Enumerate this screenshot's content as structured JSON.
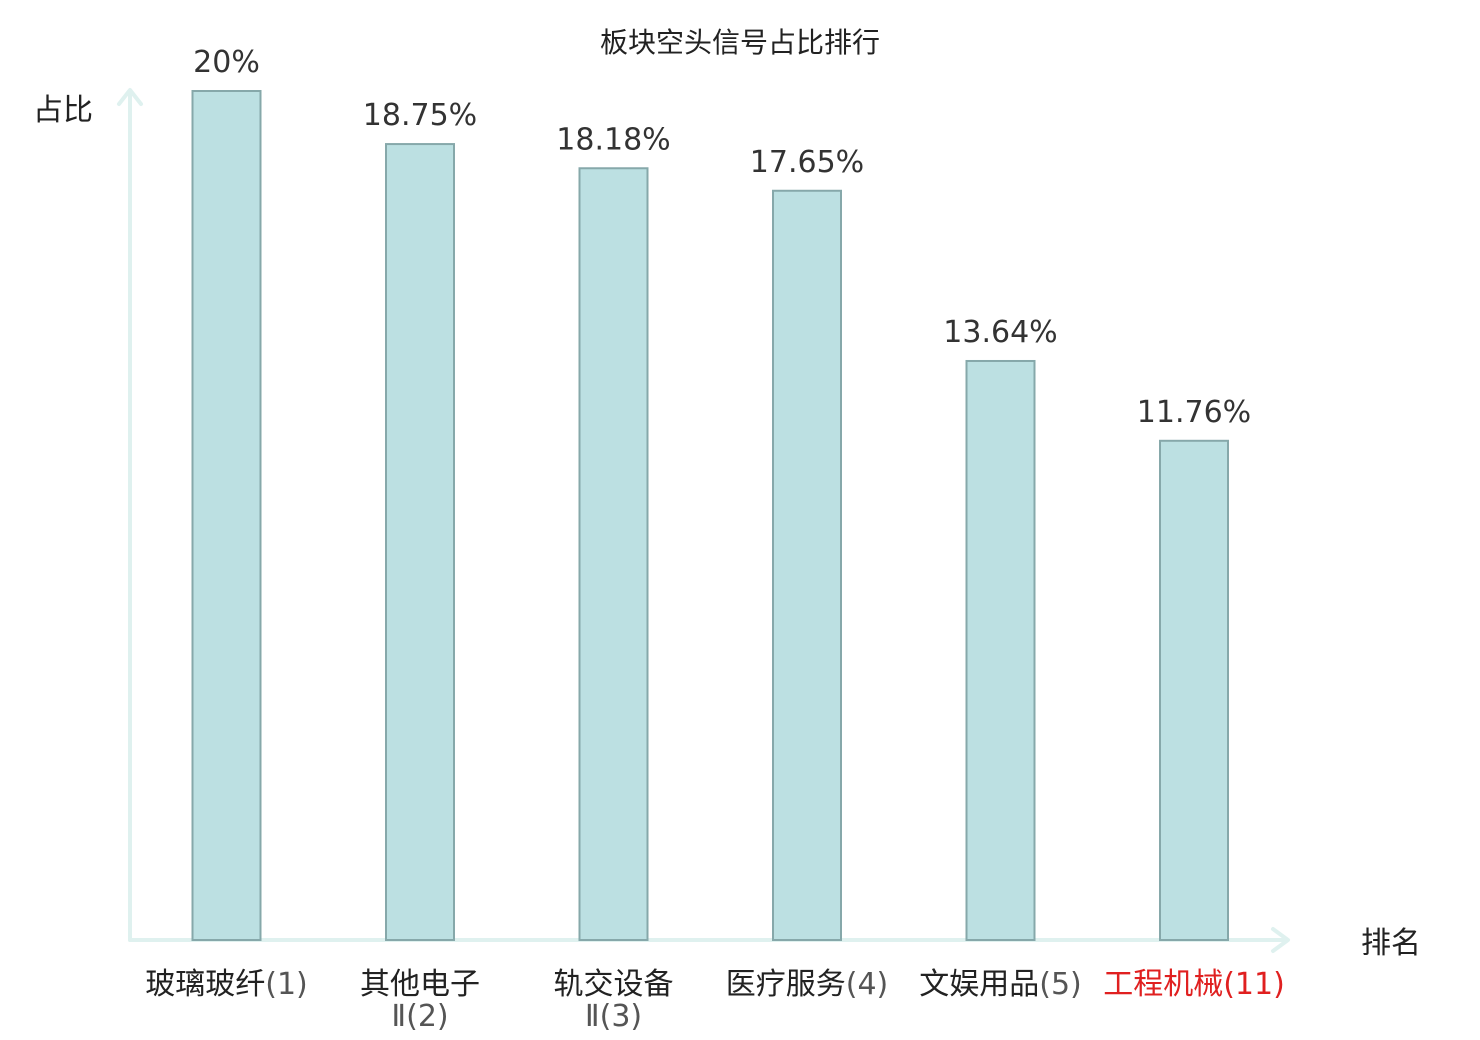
{
  "chart_data": {
    "type": "bar",
    "title": "板块空头信号占比排行",
    "ylabel": "占比",
    "xlabel": "排名",
    "ylim": [
      0,
      21
    ],
    "grid": false,
    "legend": "none",
    "categories": [
      {
        "name": "玻璃玻纤",
        "rank": "(1)",
        "highlight": false
      },
      {
        "name": "其他电子",
        "name2": "Ⅱ",
        "rank": "(2)",
        "highlight": false
      },
      {
        "name": "轨交设备",
        "name2": "Ⅱ",
        "rank": "(3)",
        "highlight": false
      },
      {
        "name": "医疗服务",
        "rank": "(4)",
        "highlight": false
      },
      {
        "name": "文娱用品",
        "rank": "(5)",
        "highlight": false
      },
      {
        "name": "工程机械",
        "rank": "(11)",
        "highlight": true
      }
    ],
    "values": [
      20,
      18.75,
      18.18,
      17.65,
      13.64,
      11.76
    ],
    "value_labels": [
      "20%",
      "18.75%",
      "18.18%",
      "17.65%",
      "13.64%",
      "11.76%"
    ]
  },
  "colors": {
    "bar_fill": "#bce0e2",
    "bar_stroke": "#86a8aa",
    "axis": "#dff1ef",
    "highlight": "#e02020"
  }
}
